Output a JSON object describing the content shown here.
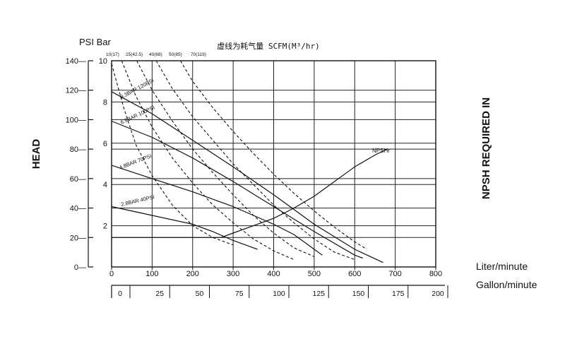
{
  "chart_data": {
    "type": "line",
    "title": "虚线为耗气量  SCFM(M³/hr)",
    "units_label": "PSI Bar",
    "left_label": "HEAD",
    "right_label": "NPSH REQUIRED IN",
    "x_primary": {
      "label": "Liter/minute",
      "range": [
        0,
        800
      ],
      "ticks": [
        "0",
        "100",
        "200",
        "300",
        "400",
        "500",
        "600",
        "700",
        "800"
      ],
      "tick_values": [
        0,
        100,
        200,
        300,
        400,
        500,
        600,
        700,
        800
      ]
    },
    "x_secondary": {
      "label": "Gallon/minute",
      "ticks": [
        "0",
        "25",
        "50",
        "75",
        "100",
        "125",
        "150",
        "175",
        "200"
      ],
      "tick_values": [
        0,
        25,
        50,
        75,
        100,
        125,
        150,
        175,
        200
      ]
    },
    "y_psi": {
      "range": [
        0,
        140
      ],
      "ticks": [
        "0",
        "20",
        "40",
        "60",
        "80",
        "100",
        "120",
        "140"
      ],
      "tick_values": [
        0,
        20,
        40,
        60,
        80,
        100,
        120,
        140
      ]
    },
    "y_bar": {
      "range": [
        0,
        10
      ],
      "ticks": [
        "2",
        "4",
        "6",
        "8",
        "10"
      ],
      "tick_values": [
        2,
        4,
        6,
        8,
        10
      ]
    },
    "air_labels": [
      "10(17)",
      "25(42.5)",
      "40(68)",
      "50(85)",
      "70(119)"
    ],
    "grid": true,
    "pressure_series": [
      {
        "name": "8.3BAR 120PSI",
        "points": [
          [
            0,
            119
          ],
          [
            100,
            104
          ],
          [
            200,
            86
          ],
          [
            300,
            68
          ],
          [
            400,
            49
          ],
          [
            500,
            29
          ],
          [
            600,
            12
          ],
          [
            670,
            3
          ]
        ]
      },
      {
        "name": "6.9BAR 100PSI",
        "points": [
          [
            0,
            99
          ],
          [
            100,
            88
          ],
          [
            200,
            74
          ],
          [
            300,
            58
          ],
          [
            400,
            41
          ],
          [
            500,
            24
          ],
          [
            600,
            8
          ],
          [
            620,
            6
          ]
        ]
      },
      {
        "name": "4.8BAR 70PSI",
        "points": [
          [
            0,
            69
          ],
          [
            100,
            60
          ],
          [
            200,
            51
          ],
          [
            300,
            41
          ],
          [
            400,
            29
          ],
          [
            450,
            22
          ],
          [
            500,
            12
          ],
          [
            520,
            8
          ]
        ]
      },
      {
        "name": "2.8BAR 40PSI",
        "points": [
          [
            0,
            41
          ],
          [
            100,
            35
          ],
          [
            200,
            29
          ],
          [
            250,
            24
          ],
          [
            300,
            18
          ],
          [
            340,
            14
          ],
          [
            360,
            12
          ]
        ]
      }
    ],
    "npsh_series": {
      "name": "NPSHr",
      "points": [
        [
          0,
          20
        ],
        [
          270,
          20
        ],
        [
          300,
          23
        ],
        [
          350,
          28
        ],
        [
          400,
          33
        ],
        [
          450,
          40
        ],
        [
          500,
          48
        ],
        [
          550,
          58
        ],
        [
          600,
          68
        ],
        [
          650,
          76
        ],
        [
          680,
          80
        ]
      ]
    },
    "air_consumption_series": [
      {
        "label": "10(17)",
        "points": [
          [
            0,
            138
          ],
          [
            30,
            108
          ],
          [
            60,
            83
          ],
          [
            100,
            62
          ],
          [
            150,
            42
          ],
          [
            200,
            28
          ],
          [
            250,
            20
          ],
          [
            300,
            15
          ]
        ]
      },
      {
        "label": "25(42.5)",
        "points": [
          [
            25,
            140
          ],
          [
            60,
            116
          ],
          [
            100,
            95
          ],
          [
            150,
            74
          ],
          [
            200,
            57
          ],
          [
            250,
            42
          ],
          [
            300,
            30
          ],
          [
            350,
            19
          ],
          [
            400,
            11
          ],
          [
            450,
            5
          ]
        ]
      },
      {
        "label": "40(68)",
        "points": [
          [
            62,
            140
          ],
          [
            100,
            120
          ],
          [
            150,
            99
          ],
          [
            200,
            80
          ],
          [
            250,
            64
          ],
          [
            300,
            49
          ],
          [
            350,
            35
          ],
          [
            400,
            23
          ],
          [
            450,
            13
          ],
          [
            500,
            7
          ]
        ]
      },
      {
        "label": "50(85)",
        "points": [
          [
            110,
            140
          ],
          [
            150,
            121
          ],
          [
            200,
            102
          ],
          [
            250,
            86
          ],
          [
            300,
            70
          ],
          [
            350,
            56
          ],
          [
            400,
            42
          ],
          [
            450,
            30
          ],
          [
            500,
            19
          ],
          [
            550,
            10
          ],
          [
            600,
            5
          ]
        ]
      },
      {
        "label": "70(119)",
        "points": [
          [
            170,
            140
          ],
          [
            200,
            126
          ],
          [
            250,
            108
          ],
          [
            300,
            92
          ],
          [
            350,
            77
          ],
          [
            400,
            63
          ],
          [
            450,
            50
          ],
          [
            500,
            38
          ],
          [
            550,
            27
          ],
          [
            600,
            17
          ],
          [
            630,
            12
          ]
        ]
      }
    ]
  }
}
